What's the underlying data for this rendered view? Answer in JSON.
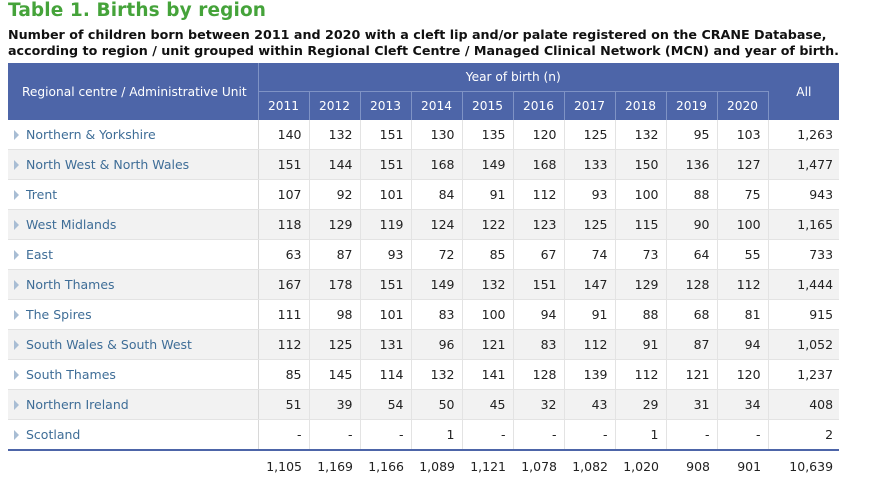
{
  "title": "Table 1. Births by region",
  "subtitle": "Number of children born between 2011 and 2020 with a cleft lip and/or palate registered on the CRANE Database, according to region / unit grouped within Regional Cleft Centre / Managed Clinical Network (MCN) and year of birth.",
  "header": {
    "region_label": "Regional centre / Administrative Unit",
    "year_group_label": "Year of birth (n)",
    "years": [
      "2011",
      "2012",
      "2013",
      "2014",
      "2015",
      "2016",
      "2017",
      "2018",
      "2019",
      "2020"
    ],
    "all_label": "All"
  },
  "rows": [
    {
      "region": "Northern & Yorkshire",
      "values": [
        "140",
        "132",
        "151",
        "130",
        "135",
        "120",
        "125",
        "132",
        "95",
        "103"
      ],
      "all": "1,263"
    },
    {
      "region": "North West & North Wales",
      "values": [
        "151",
        "144",
        "151",
        "168",
        "149",
        "168",
        "133",
        "150",
        "136",
        "127"
      ],
      "all": "1,477"
    },
    {
      "region": "Trent",
      "values": [
        "107",
        "92",
        "101",
        "84",
        "91",
        "112",
        "93",
        "100",
        "88",
        "75"
      ],
      "all": "943"
    },
    {
      "region": "West Midlands",
      "values": [
        "118",
        "129",
        "119",
        "124",
        "122",
        "123",
        "125",
        "115",
        "90",
        "100"
      ],
      "all": "1,165"
    },
    {
      "region": "East",
      "values": [
        "63",
        "87",
        "93",
        "72",
        "85",
        "67",
        "74",
        "73",
        "64",
        "55"
      ],
      "all": "733"
    },
    {
      "region": "North Thames",
      "values": [
        "167",
        "178",
        "151",
        "149",
        "132",
        "151",
        "147",
        "129",
        "128",
        "112"
      ],
      "all": "1,444"
    },
    {
      "region": "The Spires",
      "values": [
        "111",
        "98",
        "101",
        "83",
        "100",
        "94",
        "91",
        "88",
        "68",
        "81"
      ],
      "all": "915"
    },
    {
      "region": "South Wales & South West",
      "values": [
        "112",
        "125",
        "131",
        "96",
        "121",
        "83",
        "112",
        "91",
        "87",
        "94"
      ],
      "all": "1,052"
    },
    {
      "region": "South Thames",
      "values": [
        "85",
        "145",
        "114",
        "132",
        "141",
        "128",
        "139",
        "112",
        "121",
        "120"
      ],
      "all": "1,237"
    },
    {
      "region": "Northern Ireland",
      "values": [
        "51",
        "39",
        "54",
        "50",
        "45",
        "32",
        "43",
        "29",
        "31",
        "34"
      ],
      "all": "408"
    },
    {
      "region": "Scotland",
      "values": [
        "-",
        "-",
        "-",
        "1",
        "-",
        "-",
        "-",
        "1",
        "-",
        "-"
      ],
      "all": "2"
    }
  ],
  "totals": {
    "values": [
      "1,105",
      "1,169",
      "1,166",
      "1,089",
      "1,121",
      "1,078",
      "1,082",
      "1,020",
      "908",
      "901"
    ],
    "all": "10,639"
  },
  "icons": {
    "row_expand": "triangle-right-icon"
  },
  "colors": {
    "title": "#45a33a",
    "header_bg": "#4d65a8",
    "region_text": "#3e6d97"
  }
}
